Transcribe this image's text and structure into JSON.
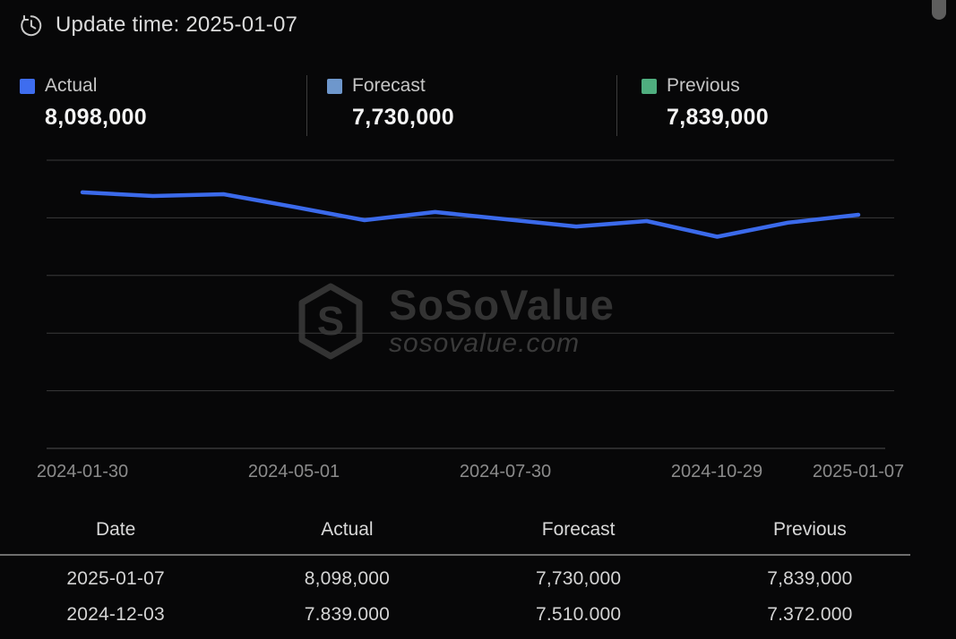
{
  "header": {
    "update_time": "Update time: 2025-01-07"
  },
  "legend": [
    {
      "label": "Actual",
      "value": "8,098,000",
      "color": "#3e6def"
    },
    {
      "label": "Forecast",
      "value": "7,730,000",
      "color": "#6e97cc"
    },
    {
      "label": "Previous",
      "value": "7,839,000",
      "color": "#4fae7f"
    }
  ],
  "watermark": {
    "brand": "SoSoValue",
    "domain": "sosovalue.com",
    "logo_letter": "S"
  },
  "chart_data": {
    "type": "line",
    "title": "",
    "xlabel": "",
    "ylabel": "",
    "grid": true,
    "legend_position": "top",
    "ylim": [
      372000,
      9904000
    ],
    "n_points": 12,
    "series": [
      {
        "name": "Actual",
        "color": "#3b6aeb",
        "values": [
          8840000,
          8720000,
          8780000,
          8360000,
          7920000,
          8190000,
          7950000,
          7710000,
          7890000,
          7372000,
          7839000,
          8098000
        ]
      }
    ],
    "x_ticks": [
      {
        "index": 0,
        "label": "2024-01-30"
      },
      {
        "index": 3,
        "label": "2024-05-01"
      },
      {
        "index": 6,
        "label": "2024-07-30"
      },
      {
        "index": 9,
        "label": "2024-10-29"
      },
      {
        "index": 11,
        "label": "2025-01-07"
      }
    ]
  },
  "table": {
    "columns": [
      "Date",
      "Actual",
      "Forecast",
      "Previous"
    ],
    "rows": [
      [
        "2025-01-07",
        "8,098,000",
        "7,730,000",
        "7,839,000"
      ],
      [
        "2024-12-03",
        "7.839.000",
        "7.510.000",
        "7.372.000"
      ]
    ]
  }
}
